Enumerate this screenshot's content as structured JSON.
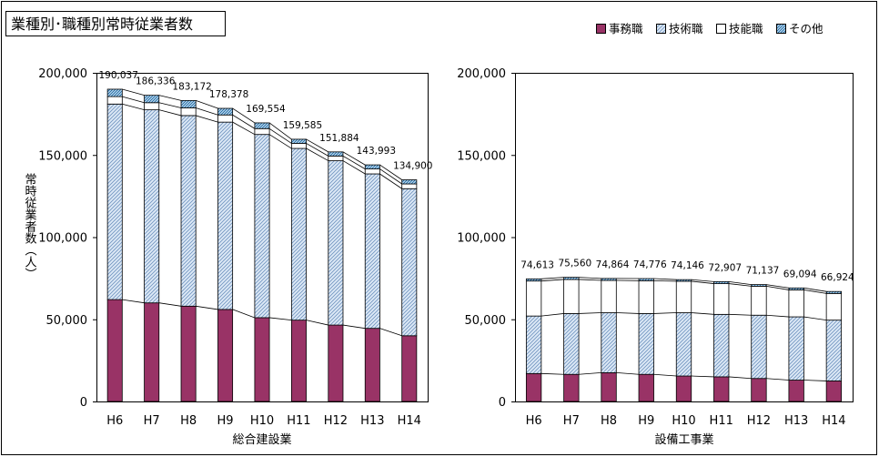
{
  "title": "業種別･職種別常時従業者数",
  "ylabel": "常時従業者数（人）",
  "legend": [
    {
      "key": "jimu",
      "label": "事務職",
      "color": "#993366",
      "pattern": "solid"
    },
    {
      "key": "gijutsu",
      "label": "技術職",
      "color": "#99ccff",
      "pattern": "hatch"
    },
    {
      "key": "gino",
      "label": "技能職",
      "color": "#ffffff",
      "pattern": "none"
    },
    {
      "key": "other",
      "label": "その他",
      "color": "#3399cc",
      "pattern": "hatch-dense"
    }
  ],
  "chart_data": [
    {
      "type": "bar",
      "stacked": true,
      "xlabel": "総合建設業",
      "ylabel": "常時従業者数（人）",
      "ylim": [
        0,
        200000
      ],
      "yticks": [
        "0",
        "50,000",
        "100,000",
        "150,000",
        "200,000"
      ],
      "categories": [
        "H6",
        "H7",
        "H8",
        "H9",
        "H10",
        "H11",
        "H12",
        "H13",
        "H14"
      ],
      "totals": [
        190037,
        186336,
        183172,
        178378,
        169554,
        159585,
        151884,
        143993,
        134900
      ],
      "total_labels": [
        "190,037",
        "186,336",
        "183,172",
        "178,378",
        "169,554",
        "159,585",
        "151,884",
        "143,993",
        "134,900"
      ],
      "series": [
        {
          "name": "事務職",
          "values": [
            62000,
            60000,
            58000,
            56000,
            51000,
            49500,
            46500,
            44500,
            40000
          ]
        },
        {
          "name": "技術職",
          "values": [
            119000,
            117500,
            116000,
            114000,
            111500,
            104500,
            100000,
            94000,
            89500
          ]
        },
        {
          "name": "技能職",
          "values": [
            4537,
            4336,
            4672,
            4378,
            3554,
            3085,
            2884,
            2993,
            2900
          ]
        },
        {
          "name": "その他",
          "values": [
            4500,
            4500,
            4500,
            4000,
            3500,
            2500,
            2500,
            2500,
            2500
          ]
        }
      ]
    },
    {
      "type": "bar",
      "stacked": true,
      "xlabel": "設備工事業",
      "ylabel": "",
      "ylim": [
        0,
        200000
      ],
      "yticks": [
        "0",
        "50,000",
        "100,000",
        "150,000",
        "200,000"
      ],
      "categories": [
        "H6",
        "H7",
        "H8",
        "H9",
        "H10",
        "H11",
        "H12",
        "H13",
        "H14"
      ],
      "totals": [
        74613,
        75560,
        74864,
        74776,
        74146,
        72907,
        71137,
        69094,
        66924
      ],
      "total_labels": [
        "74,613",
        "75,560",
        "74,864",
        "74,776",
        "74,146",
        "72,907",
        "71,137",
        "69,094",
        "66,924"
      ],
      "series": [
        {
          "name": "事務職",
          "values": [
            17000,
            16500,
            17500,
            16500,
            15500,
            15000,
            14000,
            13000,
            12500
          ]
        },
        {
          "name": "技術職",
          "values": [
            35000,
            37000,
            36500,
            37000,
            38500,
            38000,
            38500,
            38500,
            37000
          ]
        },
        {
          "name": "技能職",
          "values": [
            21313,
            20760,
            19664,
            19976,
            19146,
            18707,
            17637,
            16394,
            16224
          ]
        },
        {
          "name": "その他",
          "values": [
            1300,
            1300,
            1200,
            1300,
            1000,
            1200,
            1000,
            1200,
            1200
          ]
        }
      ]
    }
  ]
}
